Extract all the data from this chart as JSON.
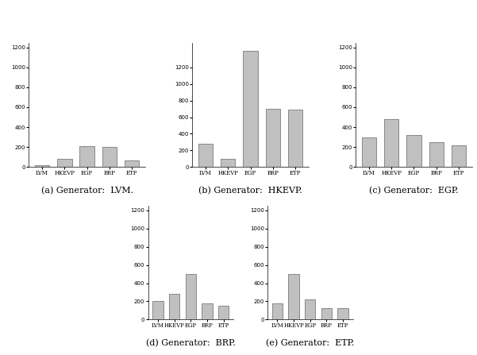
{
  "categories": [
    "LVM",
    "HKEVP",
    "EGP",
    "BRP",
    "ETP"
  ],
  "subtitles": [
    "(a) Generator:  LVM.",
    "(b) Generator:  HKEVP.",
    "(c) Generator:  EGP.",
    "(d) Generator:  BRP.",
    "(e) Generator:  ETP."
  ],
  "data": [
    [
      15,
      80,
      210,
      200,
      65
    ],
    [
      280,
      100,
      1400,
      700,
      690
    ],
    [
      300,
      480,
      320,
      250,
      220
    ],
    [
      200,
      280,
      500,
      175,
      150
    ],
    [
      175,
      500,
      225,
      125,
      125
    ]
  ],
  "yticks": [
    [
      0,
      200,
      400,
      600,
      800,
      1000,
      1200
    ],
    [
      0,
      200,
      400,
      600,
      800,
      1000,
      1200
    ],
    [
      0,
      200,
      400,
      600,
      800,
      1000,
      1200
    ],
    [
      0,
      200,
      400,
      600,
      800,
      1000,
      1200
    ],
    [
      0,
      200,
      400,
      600,
      800,
      1000,
      1200
    ]
  ],
  "ylims": [
    1250,
    1500,
    1250,
    1250,
    1250
  ],
  "bar_color": "#c0c0c0",
  "bar_edge_color": "#666666",
  "background_color": "#ffffff",
  "subtitle_fontsize": 8,
  "tick_fontsize": 5,
  "bar_width": 0.65
}
